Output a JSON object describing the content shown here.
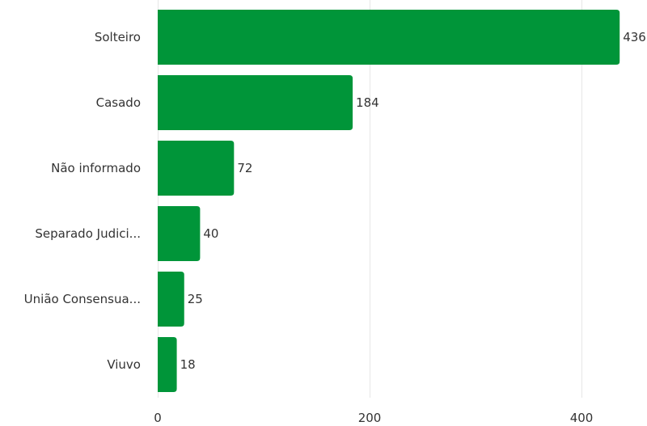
{
  "chart_data": {
    "type": "bar",
    "orientation": "horizontal",
    "categories": [
      "Solteiro",
      "Casado",
      "Não informado",
      "Separado Judici...",
      "União Consensua...",
      "Viuvo"
    ],
    "values": [
      436,
      184,
      72,
      40,
      25,
      18
    ],
    "value_labels": [
      "436",
      "184",
      "72",
      "40",
      "25",
      "18"
    ],
    "xlim": [
      0,
      445
    ],
    "x_ticks": [
      0,
      200,
      400
    ],
    "x_tick_labels": [
      "0",
      "200",
      "400"
    ],
    "grid": "vertical",
    "legend": "none",
    "colors": {
      "bar": "#009539",
      "grid": "#e6e6e6",
      "text": "#333333"
    }
  }
}
